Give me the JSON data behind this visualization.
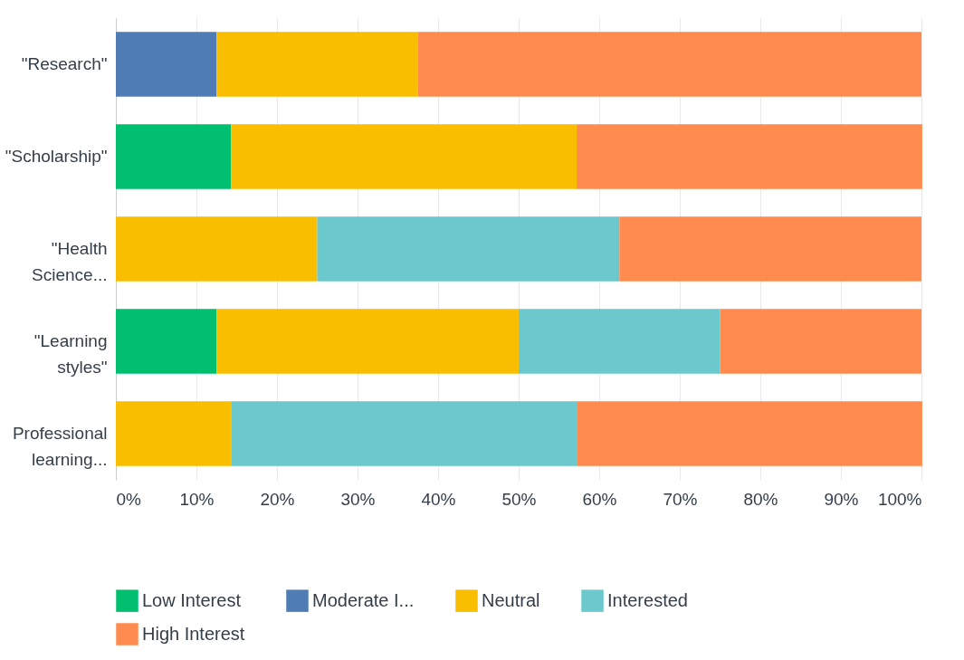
{
  "chart_data": {
    "type": "bar",
    "orientation": "horizontal",
    "stacked": true,
    "categories": [
      "\"Research\"",
      "\"Scholarship\"",
      "\"Health Science...",
      "\"Learning styles\"",
      "Professional learning..."
    ],
    "series": [
      {
        "name": "Low Interest",
        "color": "#00bf6f",
        "values": [
          null,
          14.3,
          null,
          12.5,
          null
        ]
      },
      {
        "name": "Moderate I...",
        "color": "#507cb6",
        "values": [
          12.5,
          null,
          null,
          null,
          null
        ]
      },
      {
        "name": "Neutral",
        "color": "#f9be00",
        "values": [
          25,
          42.9,
          25,
          37.5,
          14.3
        ]
      },
      {
        "name": "Interested",
        "color": "#6bc8cd",
        "values": [
          null,
          null,
          37.5,
          25,
          42.9
        ]
      },
      {
        "name": "High Interest",
        "color": "#ff8b4f",
        "values": [
          62.5,
          42.9,
          37.5,
          25,
          42.9
        ]
      }
    ],
    "xlim": [
      0,
      100
    ],
    "xticks": [
      {
        "value": 0,
        "label": "0%"
      },
      {
        "value": 10,
        "label": "10%"
      },
      {
        "value": 20,
        "label": "20%"
      },
      {
        "value": 30,
        "label": "30%"
      },
      {
        "value": 40,
        "label": "40%"
      },
      {
        "value": 50,
        "label": "50%"
      },
      {
        "value": 60,
        "label": "60%"
      },
      {
        "value": 70,
        "label": "70%"
      },
      {
        "value": 80,
        "label": "80%"
      },
      {
        "value": 90,
        "label": "90%"
      },
      {
        "value": 100,
        "label": "100%"
      }
    ],
    "grid": "x",
    "legend": "bottom"
  }
}
